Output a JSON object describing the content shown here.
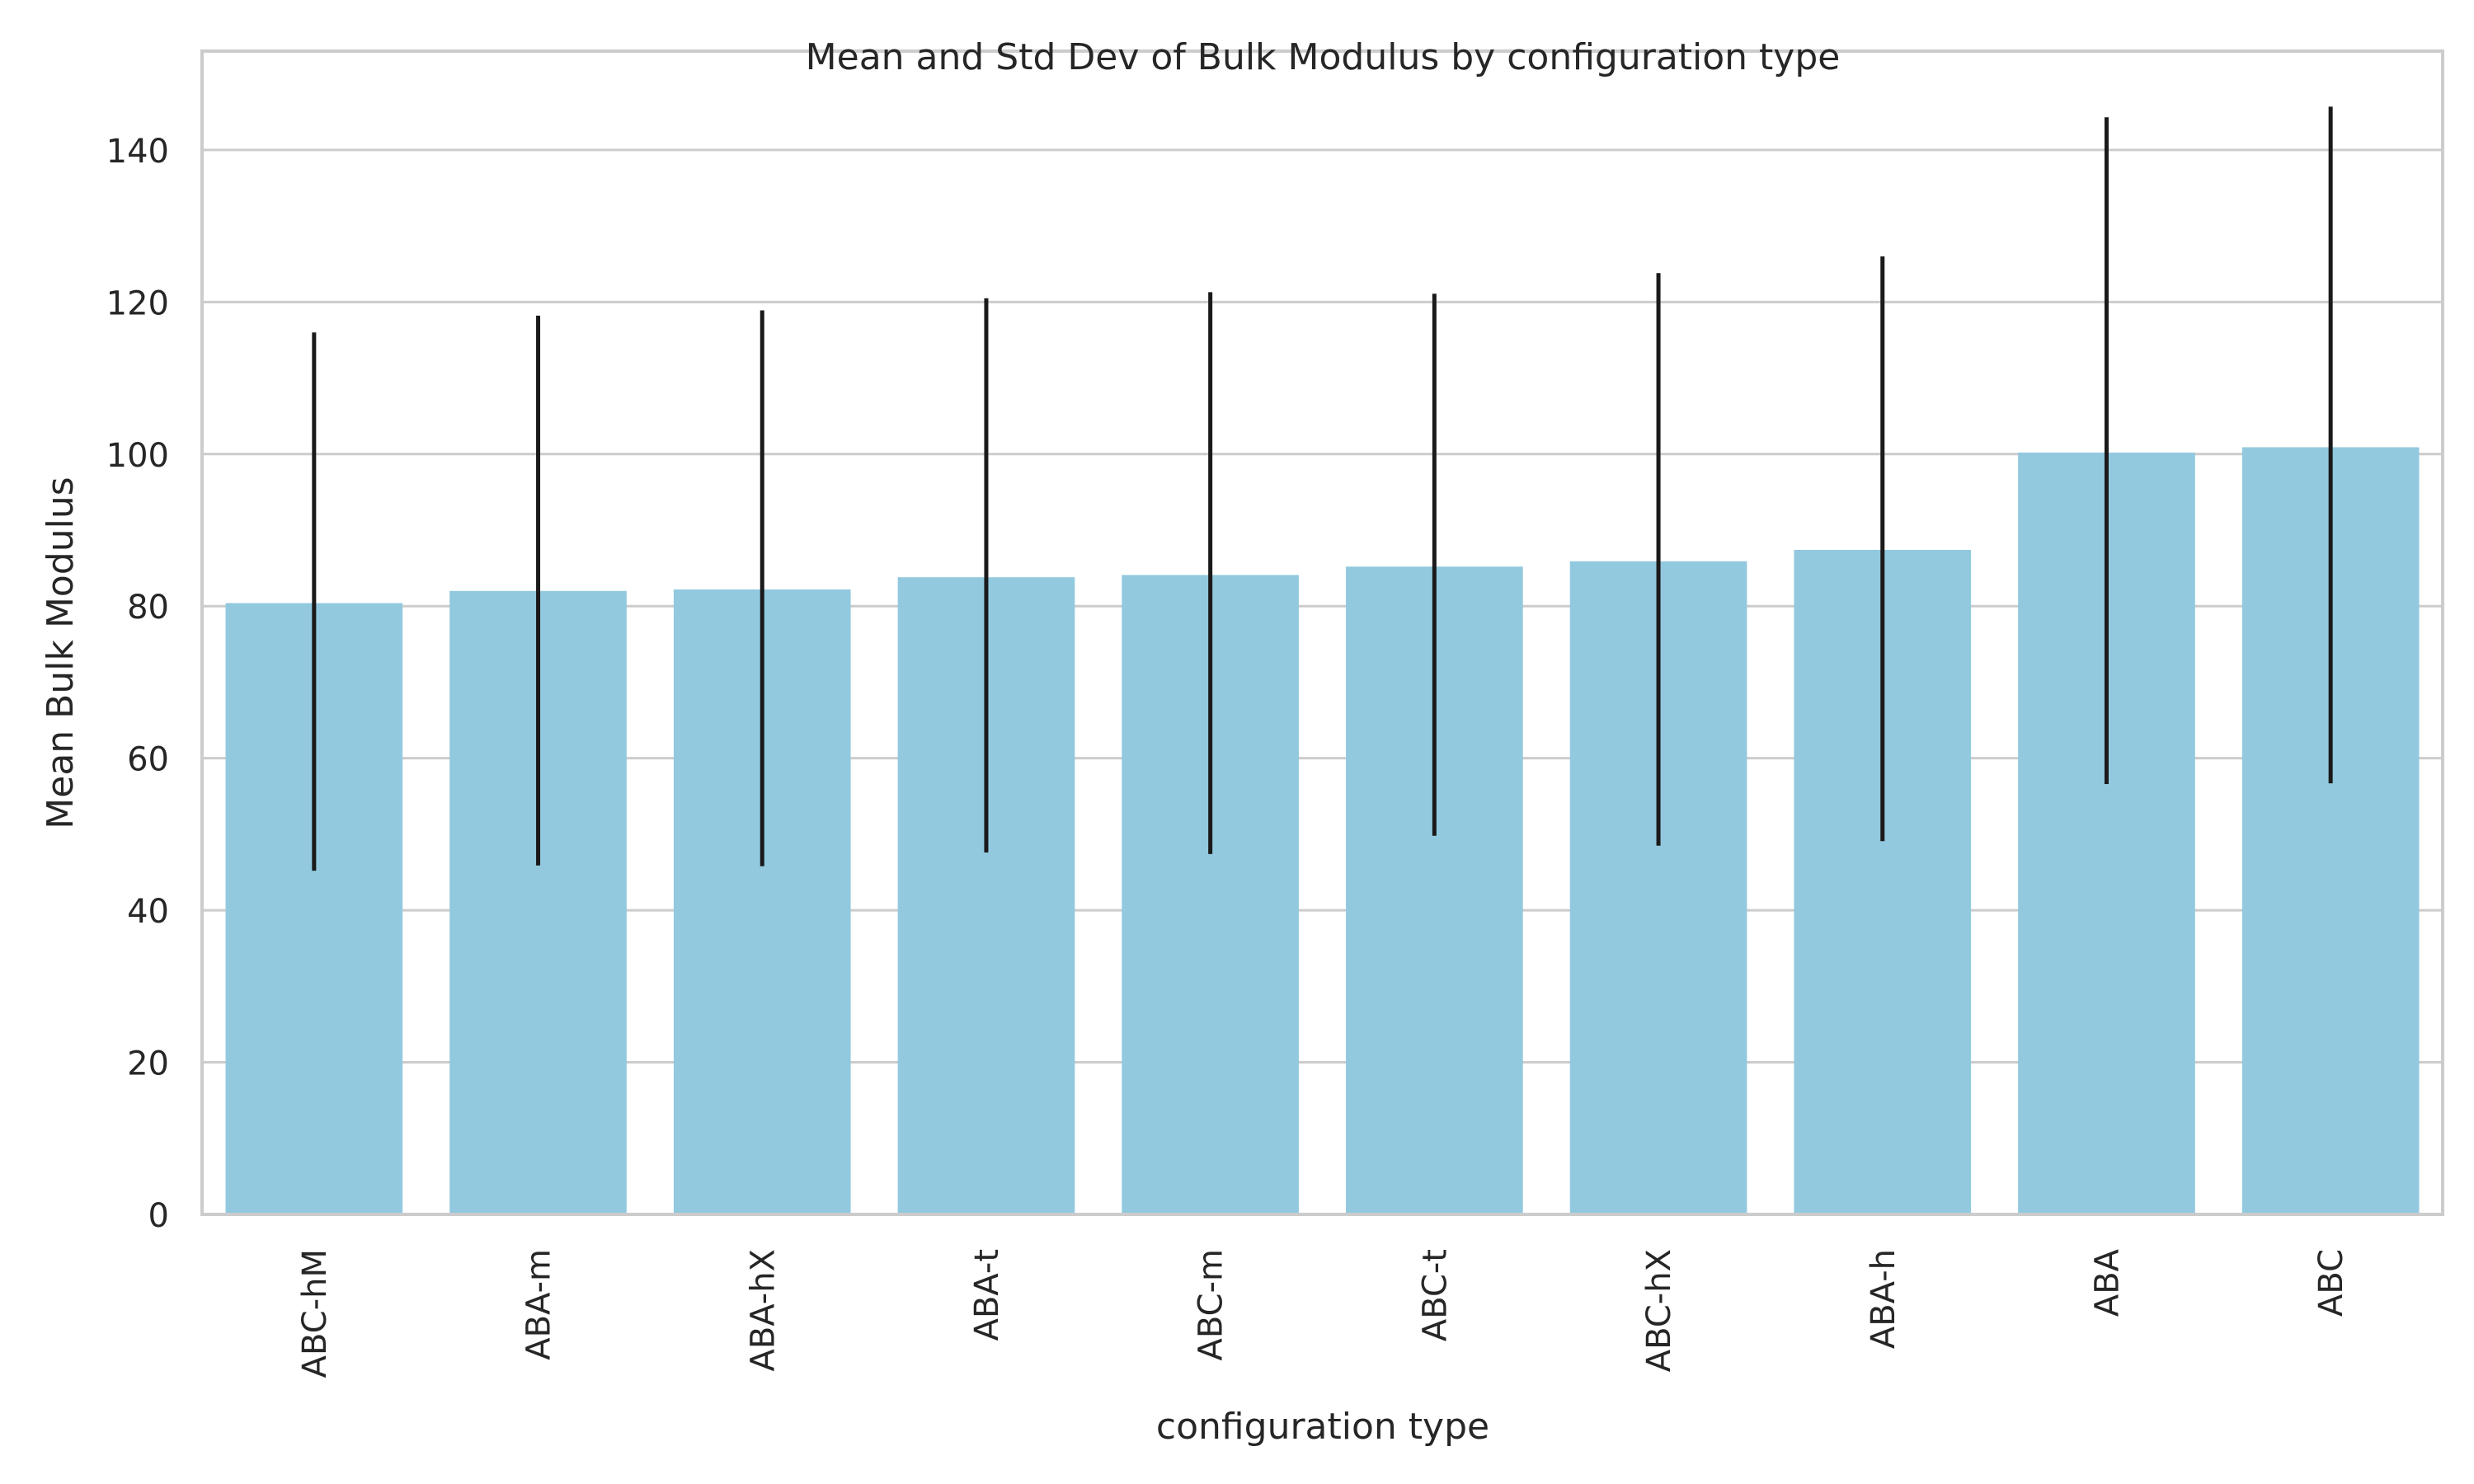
{
  "chart_data": {
    "type": "bar",
    "title": "Mean and Std Dev of Bulk Modulus by configuration type",
    "xlabel": "configuration type",
    "ylabel": "Mean Bulk Modulus",
    "categories": [
      "ABC-hM",
      "ABA-m",
      "ABA-hX",
      "ABA-t",
      "ABC-m",
      "ABC-t",
      "ABC-hX",
      "ABA-h",
      "ABA",
      "ABC"
    ],
    "values": [
      80.4,
      82.0,
      82.2,
      83.8,
      84.1,
      85.2,
      85.9,
      87.4,
      100.2,
      100.9
    ],
    "error_low": [
      45.2,
      45.9,
      45.8,
      47.6,
      47.4,
      49.8,
      48.5,
      49.1,
      56.6,
      56.7
    ],
    "error_high": [
      116.0,
      118.2,
      118.9,
      120.5,
      121.3,
      121.1,
      123.8,
      126.0,
      144.3,
      145.7
    ],
    "ylim": [
      0,
      153
    ],
    "yticks": [
      0,
      20,
      40,
      60,
      80,
      100,
      120,
      140
    ],
    "grid": "horizontal",
    "colors": {
      "bar": "#92c9df",
      "error_bar": "#1a1a1a",
      "grid": "#cccccc",
      "axes_edge": "#cccccc",
      "text": "#262626"
    }
  }
}
